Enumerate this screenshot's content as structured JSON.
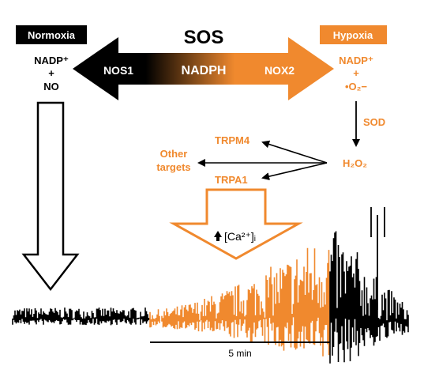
{
  "title": "SOS",
  "conditions": {
    "normoxia": "Normoxia",
    "hypoxia": "Hypoxia"
  },
  "arrow": {
    "left_enzyme": "NOS1",
    "center_substrate": "NADPH",
    "right_enzyme": "NOX2"
  },
  "normoxia_products": {
    "line1": "NADP⁺",
    "line2": "+",
    "line3": "NO"
  },
  "hypoxia_products": {
    "line1": "NADP⁺",
    "line2": "+",
    "line3": "•O₂−"
  },
  "sod_label": "SOD",
  "h2o2_label": "H₂O₂",
  "targets": {
    "trpm4": "TRPM4",
    "other_line1": "Other",
    "other_line2": "targets",
    "trpa1": "TRPA1"
  },
  "calcium_label": "[Ca²⁺]ᵢ",
  "scale_bar_label": "5 min",
  "colors": {
    "orange": "#f0892e",
    "black": "#000000",
    "white": "#ffffff"
  },
  "trace": {
    "baseline_segment": "black",
    "mid_segment": "orange",
    "late_segment": "black"
  }
}
